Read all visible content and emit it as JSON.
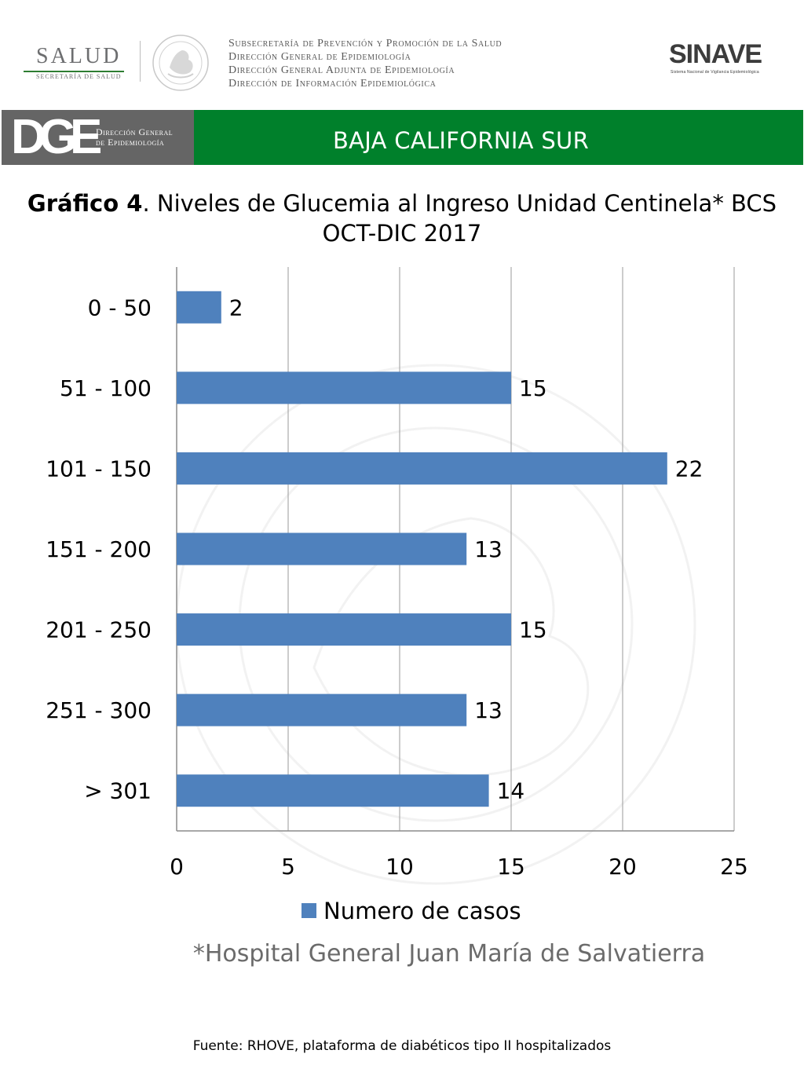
{
  "header": {
    "salud_logo": {
      "word": "SALUD",
      "sub": "SECRETARÍA DE SALUD",
      "accent_color": "#2e7d32"
    },
    "seal_icon": "mexican-coat-of-arms-seal",
    "agency_lines": [
      "Subsecretaría de Prevención y Promoción de la Salud",
      "Dirección General de Epidemiología",
      "Dirección General Adjunta de Epidemiología",
      "Dirección de Información Epidemiológica"
    ],
    "sinave_logo": {
      "word": "SINAVE",
      "sub": "Sistema Nacional de Vigilancia Epidemiológica"
    }
  },
  "banner": {
    "dge_letters": "DGE",
    "dge_text_lines": [
      "Dirección General",
      "de Epidemiología"
    ],
    "state": "BAJA CALIFORNIA SUR",
    "gray_color": "#656565",
    "green_color": "#00802b"
  },
  "chart_data": {
    "type": "bar",
    "orientation": "horizontal",
    "title_bold": "Gráfico 4",
    "title_rest": ". Niveles de Glucemia al Ingreso Unidad Centinela* BCS",
    "subtitle": "OCT-DIC 2017",
    "categories": [
      "0 - 50",
      "51 - 100",
      "101 - 150",
      "151 - 200",
      "201 - 250",
      "251 - 300",
      "> 301"
    ],
    "series": [
      {
        "name": "Numero de casos",
        "values": [
          2,
          15,
          22,
          13,
          15,
          13,
          14
        ],
        "color": "#4f81bd"
      }
    ],
    "x_ticks": [
      0,
      5,
      10,
      15,
      20,
      25
    ],
    "xlim": [
      0,
      25
    ],
    "grid": true,
    "legend_position": "bottom",
    "data_labels": true
  },
  "notes": {
    "hospital": "*Hospital General Juan María de Salvatierra",
    "source": "Fuente: RHOVE, plataforma de diabéticos tipo II hospitalizados"
  }
}
